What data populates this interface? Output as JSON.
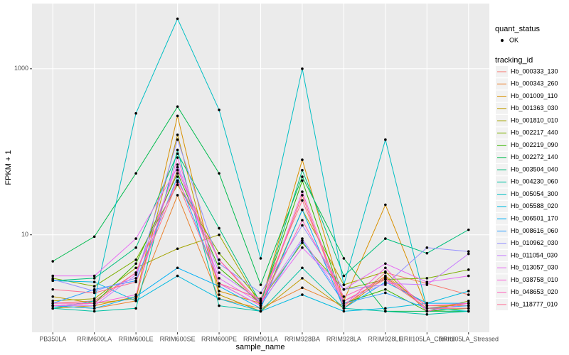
{
  "chart_data": {
    "type": "line",
    "x_label": "sample_name",
    "y_label": "FPKM + 1",
    "categories": [
      "PB350LA",
      "RRIM600LA",
      "RRIM600LE",
      "RRIM600SE",
      "RRIM600PE",
      "RRIM901LA",
      "RRIM928BA",
      "RRIM928LA",
      "RRIM928LE",
      "RRII105LA_Control",
      "RRII105LA_Stressed"
    ],
    "log_y": true,
    "ylim": [
      0.67,
      6100
    ],
    "yticks": [
      10,
      1000
    ],
    "grid": true,
    "point_color": "#000000",
    "point_legend": {
      "title": "quant_status",
      "labels": [
        "OK"
      ]
    },
    "legend_title": "tracking_id",
    "series": [
      {
        "name": "Hb_000333_130",
        "color": "#F8766D",
        "values": [
          1.5,
          1.6,
          3.5,
          60,
          5,
          1.4,
          30,
          1.3,
          3.5,
          2.6,
          1.9
        ]
      },
      {
        "name": "Hb_000343_260",
        "color": "#EA8331",
        "values": [
          1.4,
          1.3,
          1.6,
          30,
          1.7,
          1.3,
          2.3,
          1.4,
          3.2,
          1.4,
          1.4
        ]
      },
      {
        "name": "Hb_001009_110",
        "color": "#D89000",
        "values": [
          1.3,
          1.4,
          1.8,
          270,
          2.1,
          1.5,
          80,
          1.6,
          23,
          1.3,
          1.5
        ]
      },
      {
        "name": "Hb_001363_030",
        "color": "#C09B00",
        "values": [
          1.8,
          1.5,
          1.7,
          160,
          1.9,
          1.2,
          3.0,
          1.3,
          3.1,
          1.3,
          1.3
        ]
      },
      {
        "name": "Hb_001810_010",
        "color": "#A3A500",
        "values": [
          1.6,
          1.7,
          4.0,
          6.8,
          10,
          1.4,
          20,
          2.5,
          3.6,
          1.2,
          1.6
        ]
      },
      {
        "name": "Hb_002217_440",
        "color": "#7CAE00",
        "values": [
          3.0,
          2.4,
          5.0,
          40,
          6,
          1.6,
          8,
          2.2,
          2.9,
          3.0,
          3.8
        ]
      },
      {
        "name": "Hb_002219_090",
        "color": "#39B600",
        "values": [
          1.4,
          1.5,
          4.5,
          55,
          4,
          1.5,
          45,
          1.5,
          2.2,
          1.2,
          1.3
        ]
      },
      {
        "name": "Hb_002272_140",
        "color": "#00BB4E",
        "values": [
          4.8,
          9.5,
          55,
          350,
          55,
          2.5,
          50,
          5.2,
          1.2,
          1.2,
          1.2
        ]
      },
      {
        "name": "Hb_003504_040",
        "color": "#00BF7D",
        "values": [
          2.8,
          3.0,
          7,
          95,
          12,
          1.5,
          60,
          3.2,
          9,
          6,
          11.5
        ]
      },
      {
        "name": "Hb_004230_060",
        "color": "#00C1A3",
        "values": [
          1.3,
          1.2,
          1.3,
          105,
          1.4,
          1.2,
          4.0,
          1.3,
          1.2,
          1.1,
          1.2
        ]
      },
      {
        "name": "Hb_005054_300",
        "color": "#00BFC4",
        "values": [
          1.3,
          1.6,
          290,
          4000,
          320,
          5.2,
          1000,
          2.5,
          140,
          1.3,
          1.2
        ]
      },
      {
        "name": "Hb_005588_020",
        "color": "#00BAE0",
        "values": [
          2.8,
          2.7,
          1.6,
          3.2,
          1.7,
          1.2,
          1.9,
          1.2,
          1.3,
          1.5,
          2.1
        ]
      },
      {
        "name": "Hb_006501_170",
        "color": "#00B0F6",
        "values": [
          1.4,
          1.3,
          1.8,
          4.0,
          2.4,
          1.3,
          20,
          1.3,
          2.7,
          1.5,
          1.5
        ]
      },
      {
        "name": "Hb_008616_060",
        "color": "#35A2FF",
        "values": [
          1.5,
          2.2,
          2.8,
          50,
          2.6,
          1.4,
          8.5,
          1.5,
          2.0,
          1.3,
          1.4
        ]
      },
      {
        "name": "Hb_010962_030",
        "color": "#9590FF",
        "values": [
          2.9,
          2.1,
          3.0,
          140,
          4.5,
          2.0,
          13,
          2.2,
          2.5,
          7,
          6.3
        ]
      },
      {
        "name": "Hb_011054_030",
        "color": "#C77CFF",
        "values": [
          1.4,
          1.4,
          3.3,
          70,
          3.5,
          1.6,
          9,
          1.6,
          2.6,
          2.5,
          5.9
        ]
      },
      {
        "name": "Hb_013057_030",
        "color": "#E76BF3",
        "values": [
          3.2,
          3.2,
          9,
          65,
          3.0,
          1.5,
          7,
          2.2,
          4.5,
          2.7,
          3.2
        ]
      },
      {
        "name": "Hb_038758_010",
        "color": "#FA62DB",
        "values": [
          1.4,
          1.5,
          1.9,
          85,
          2.6,
          1.4,
          33,
          1.4,
          4.0,
          1.2,
          1.5
        ]
      },
      {
        "name": "Hb_048653_020",
        "color": "#FF62BC",
        "values": [
          1.5,
          1.5,
          3.5,
          45,
          5.0,
          1.5,
          15,
          1.8,
          3.0,
          1.4,
          1.5
        ]
      },
      {
        "name": "Hb_118777_010",
        "color": "#FF6C91",
        "values": [
          2.2,
          2.0,
          2.7,
          43,
          2.6,
          1.7,
          26,
          1.6,
          2.9,
          1.3,
          1.3
        ]
      }
    ]
  }
}
